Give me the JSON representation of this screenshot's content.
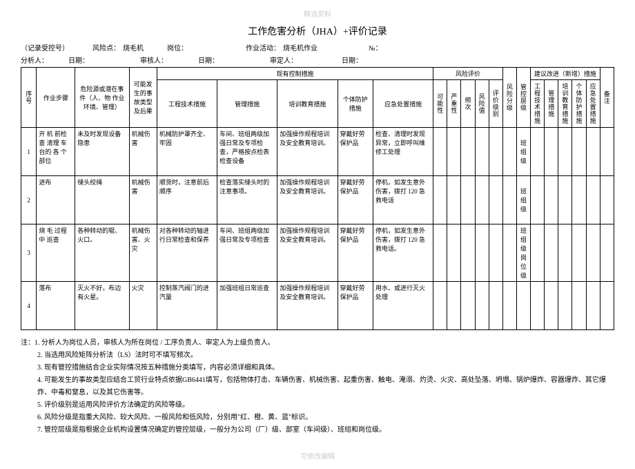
{
  "watermark_top": "精选资料",
  "watermark_bottom": "可修改编辑",
  "title": "工作危害分析（JHA）+评价记录",
  "header1": {
    "record_no_label": "（记录受控号）",
    "risk_point_label": "风险点：",
    "risk_point_value": "烧毛机",
    "position_label": "岗位：",
    "activity_label": "作业活动：",
    "activity_value": "烧毛机作业",
    "no_label": "№："
  },
  "header2": {
    "analyst_label": "分析人：",
    "date1_label": "日期：",
    "reviewer_label": "审核人：",
    "date2_label": "日期：",
    "approver_label": "审定人：",
    "date3_label": "日期："
  },
  "thead": {
    "seq": "序号",
    "step": "作业步骤",
    "hazard": "危险源或潜在事件（人、物 作业环境、管理）",
    "event": "可能发生的事故类型及后果",
    "existing_controls": "现有控制措施",
    "eng_measure": "工程技术措施",
    "mgmt_measure": "管理措施",
    "training_measure": "培训教育措施",
    "ppe_measure": "个体防护措施",
    "emergency_measure": "应急处置措施",
    "risk_eval": "风险评价",
    "possibility": "可能性",
    "severity": "严重性",
    "frequency": "频次",
    "risk_value": "风险值",
    "eval_level": "评价级别",
    "risk_grade": "风险分级",
    "control_level": "管控层级",
    "suggested": "建议改进（新增）措施",
    "s_eng": "工程技术措施",
    "s_mgmt": "管理措施",
    "s_training": "培训教育措施",
    "s_ppe": "个体防护措施",
    "s_emergency": "应急处置措施",
    "remark": "备注"
  },
  "rows": [
    {
      "seq": "1",
      "step": "开 机 前检 查 清理 车 台的 各 个部位",
      "hazard": "未及时发现设备隐患",
      "event": "机械伤害",
      "eng": "机械防护罩齐全、牢固",
      "mgmt": "车间、班组两级加强日常及专项检查，严格按点检表检查设备",
      "training": "加强操作规程培训及安全教育培训。",
      "ppe": "穿戴好劳保护品",
      "emergency": "检查、清理时发现异常，立即呼叫维修工处理",
      "control_level": "班组级"
    },
    {
      "seq": "2",
      "step": "进布",
      "hazard": "缝头绞绳",
      "event": "机械伤害",
      "eng": "顺货时，注意前后顺序",
      "mgmt": "检查落实缝头时的注意事项。",
      "training": "加强操作规程培训及安全教育培训。",
      "ppe": "穿戴好劳保护品",
      "emergency": "停机，如发生意外伤害，拨打 120 急救电话",
      "control_level": "班组级"
    },
    {
      "seq": "3",
      "step": "烧 毛 过程 中 巡查",
      "hazard": "各种转动的辊、火口。",
      "event": "机械伤害、火灾",
      "eng": "对各种转动的轴进行日常检查和保养",
      "mgmt": "车间、班组两级加强日常及专项检查",
      "training": "加强操作规程培训及安全教育培训。",
      "ppe": "穿戴好劳保护品",
      "emergency": "停机，如发生意外伤害，拨打 120 急救电话。",
      "control_level": "班组级 岗位级"
    },
    {
      "seq": "4",
      "step": "落布",
      "hazard": "灭火不好，布边有火星。",
      "event": "火灾",
      "eng": "控制蒸汽阀门的进汽量",
      "mgmt": "加强班组日常巡查",
      "training": "加强操作规程培训及安全教育培训。",
      "ppe": "穿戴好劳保护品",
      "emergency": "用水、或进行灭火处理",
      "control_level": ""
    }
  ],
  "notes_label": "注：",
  "notes": [
    "1. 分析人为岗位人员，审核人为所在岗位 / 工序负责人、审定人为上级负责人。",
    "2. 当选用风险矩阵分析法（LS）法时可不填写频次。",
    "3. 现有管控措施结合企业实际情况按五种措施分类填写，内容必须详细和具体。",
    "4. 可能发生的事故类型应结合工贸行业特点依据GB6441填写，包括物体打击、车辆伤害、机械伤害、起重伤害、触电、淹溺、灼烫、火灾、高处坠落、坍塌、锅炉爆炸、容器爆炸、其它爆炸、中毒和窒息，以及其它伤害等。",
    "5. 评价级别是运用风险评价方法确定的风险等级。",
    "6. 风险分级是指重大风险、较大风险、一般风险和低风险，分别用\"红、橙、黄、蓝\"标识。",
    "7. 管控层级是指根据企业机构设置情况确定的管控层级，一般分为公司（厂）级、部室（车间级）、班组和岗位级。"
  ]
}
